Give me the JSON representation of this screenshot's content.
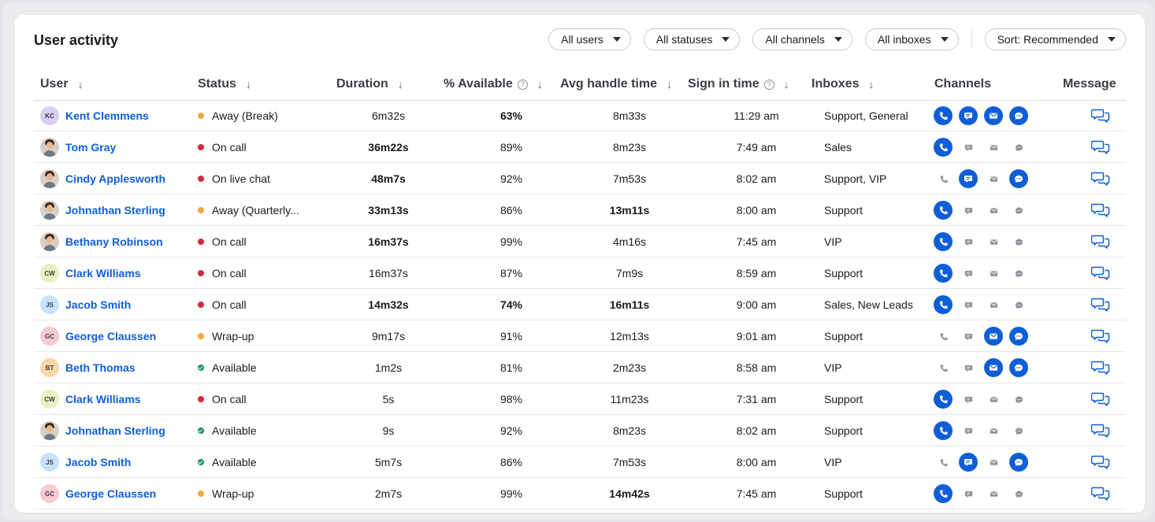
{
  "title": "User activity",
  "filters": [
    "All users",
    "All statuses",
    "All channels",
    "All inboxes"
  ],
  "sort": "Sort: Recommended",
  "columns": {
    "user": "User",
    "status": "Status",
    "duration": "Duration",
    "available": "% Available",
    "avg_handle": "Avg handle time",
    "sign_in": "Sign in time",
    "inboxes": "Inboxes",
    "channels": "Channels",
    "message": "Message"
  },
  "colors": {
    "accent": "#0e5ed8",
    "on_call": "#d42b3a",
    "away": "#f0a93a",
    "available": "#1b8f5a"
  },
  "rows": [
    {
      "name": "Kent Clemmens",
      "initials": "KC",
      "avatar_color": "#d8cdf2",
      "status": "Away (Break)",
      "status_color": "orange",
      "duration": "6m32s",
      "duration_bold": false,
      "available": "63%",
      "available_bold": true,
      "aht": "8m33s",
      "aht_bold": false,
      "sign_in": "11:29 am",
      "inboxes": "Support, General",
      "channels": [
        1,
        1,
        1,
        1
      ]
    },
    {
      "name": "Tom Gray",
      "initials": "",
      "avatar_color": "photo",
      "status": "On call",
      "status_color": "red",
      "duration": "36m22s",
      "duration_bold": true,
      "available": "89%",
      "available_bold": false,
      "aht": "8m23s",
      "aht_bold": false,
      "sign_in": "7:49 am",
      "inboxes": "Sales",
      "channels": [
        1,
        0,
        0,
        0
      ]
    },
    {
      "name": "Cindy Applesworth",
      "initials": "",
      "avatar_color": "photo",
      "status": "On live chat",
      "status_color": "red",
      "duration": "48m7s",
      "duration_bold": true,
      "available": "92%",
      "available_bold": false,
      "aht": "7m53s",
      "aht_bold": false,
      "sign_in": "8:02 am",
      "inboxes": "Support, VIP",
      "channels": [
        0,
        1,
        0,
        1
      ]
    },
    {
      "name": "Johnathan Sterling",
      "initials": "",
      "avatar_color": "photo",
      "status": "Away (Quarterly...",
      "status_color": "orange",
      "duration": "33m13s",
      "duration_bold": true,
      "available": "86%",
      "available_bold": false,
      "aht": "13m11s",
      "aht_bold": true,
      "sign_in": "8:00 am",
      "inboxes": "Support",
      "channels": [
        1,
        0,
        0,
        0
      ]
    },
    {
      "name": "Bethany Robinson",
      "initials": "",
      "avatar_color": "photo",
      "status": "On call",
      "status_color": "red",
      "duration": "16m37s",
      "duration_bold": true,
      "available": "99%",
      "available_bold": false,
      "aht": "4m16s",
      "aht_bold": false,
      "sign_in": "7:45 am",
      "inboxes": "VIP",
      "channels": [
        1,
        0,
        0,
        0
      ]
    },
    {
      "name": "Clark Williams",
      "initials": "CW",
      "avatar_color": "#e3f3c0",
      "status": "On call",
      "status_color": "red",
      "duration": "16m37s",
      "duration_bold": false,
      "available": "87%",
      "available_bold": false,
      "aht": "7m9s",
      "aht_bold": false,
      "sign_in": "8:59 am",
      "inboxes": "Support",
      "channels": [
        1,
        0,
        0,
        0
      ]
    },
    {
      "name": "Jacob Smith",
      "initials": "JS",
      "avatar_color": "#c9e2fb",
      "status": "On call",
      "status_color": "red",
      "duration": "14m32s",
      "duration_bold": true,
      "available": "74%",
      "available_bold": true,
      "aht": "16m11s",
      "aht_bold": true,
      "sign_in": "9:00 am",
      "inboxes": "Sales, New Leads",
      "channels": [
        1,
        0,
        0,
        0
      ]
    },
    {
      "name": "George Claussen",
      "initials": "GC",
      "avatar_color": "#f8cbd1",
      "status": "Wrap-up",
      "status_color": "orange",
      "duration": "9m17s",
      "duration_bold": false,
      "available": "91%",
      "available_bold": false,
      "aht": "12m13s",
      "aht_bold": false,
      "sign_in": "9:01 am",
      "inboxes": "Support",
      "channels": [
        0,
        0,
        1,
        1
      ]
    },
    {
      "name": "Beth Thomas",
      "initials": "BT",
      "avatar_color": "#fbd6a8",
      "status": "Available",
      "status_color": "green",
      "duration": "1m2s",
      "duration_bold": false,
      "available": "81%",
      "available_bold": false,
      "aht": "2m23s",
      "aht_bold": false,
      "sign_in": "8:58 am",
      "inboxes": "VIP",
      "channels": [
        0,
        0,
        1,
        1
      ]
    },
    {
      "name": "Clark Williams",
      "initials": "CW",
      "avatar_color": "#e3f3c0",
      "status": "On call",
      "status_color": "red",
      "duration": "5s",
      "duration_bold": false,
      "available": "98%",
      "available_bold": false,
      "aht": "11m23s",
      "aht_bold": false,
      "sign_in": "7:31 am",
      "inboxes": "Support",
      "channels": [
        1,
        0,
        0,
        0
      ]
    },
    {
      "name": "Johnathan Sterling",
      "initials": "",
      "avatar_color": "photo",
      "status": "Available",
      "status_color": "green",
      "duration": "9s",
      "duration_bold": false,
      "available": "92%",
      "available_bold": false,
      "aht": "8m23s",
      "aht_bold": false,
      "sign_in": "8:02 am",
      "inboxes": "Support",
      "channels": [
        1,
        0,
        0,
        0
      ]
    },
    {
      "name": "Jacob Smith",
      "initials": "JS",
      "avatar_color": "#c9e2fb",
      "status": "Available",
      "status_color": "green",
      "duration": "5m7s",
      "duration_bold": false,
      "available": "86%",
      "available_bold": false,
      "aht": "7m53s",
      "aht_bold": false,
      "sign_in": "8:00 am",
      "inboxes": "VIP",
      "channels": [
        0,
        1,
        0,
        1
      ]
    },
    {
      "name": "George Claussen",
      "initials": "GC",
      "avatar_color": "#f8cbd1",
      "status": "Wrap-up",
      "status_color": "orange",
      "duration": "2m7s",
      "duration_bold": false,
      "available": "99%",
      "available_bold": false,
      "aht": "14m42s",
      "aht_bold": true,
      "sign_in": "7:45 am",
      "inboxes": "Support",
      "channels": [
        1,
        0,
        0,
        0
      ]
    }
  ]
}
